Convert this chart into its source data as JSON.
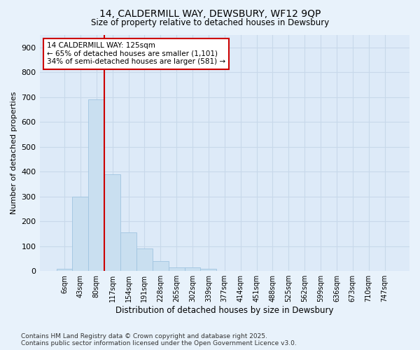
{
  "title_line1": "14, CALDERMILL WAY, DEWSBURY, WF12 9QP",
  "title_line2": "Size of property relative to detached houses in Dewsbury",
  "xlabel": "Distribution of detached houses by size in Dewsbury",
  "ylabel": "Number of detached properties",
  "bar_color": "#c9dff0",
  "bar_edge_color": "#a0c4e0",
  "bar_categories": [
    "6sqm",
    "43sqm",
    "80sqm",
    "117sqm",
    "154sqm",
    "191sqm",
    "228sqm",
    "265sqm",
    "302sqm",
    "339sqm",
    "377sqm",
    "414sqm",
    "451sqm",
    "488sqm",
    "525sqm",
    "562sqm",
    "599sqm",
    "636sqm",
    "673sqm",
    "710sqm",
    "747sqm"
  ],
  "bar_values": [
    8,
    300,
    690,
    390,
    155,
    90,
    40,
    15,
    15,
    10,
    0,
    0,
    0,
    0,
    0,
    0,
    0,
    0,
    0,
    0,
    0
  ],
  "ylim": [
    0,
    950
  ],
  "yticks": [
    0,
    100,
    200,
    300,
    400,
    500,
    600,
    700,
    800,
    900
  ],
  "vline_x_bin": 3,
  "annotation_text_line1": "14 CALDERMILL WAY: 125sqm",
  "annotation_text_line2": "← 65% of detached houses are smaller (1,101)",
  "annotation_text_line3": "34% of semi-detached houses are larger (581) →",
  "vline_color": "#cc0000",
  "background_color": "#e8f2fb",
  "plot_bg_color": "#ddeaf8",
  "grid_color": "#c8d8ea",
  "footer_line1": "Contains HM Land Registry data © Crown copyright and database right 2025.",
  "footer_line2": "Contains public sector information licensed under the Open Government Licence v3.0."
}
